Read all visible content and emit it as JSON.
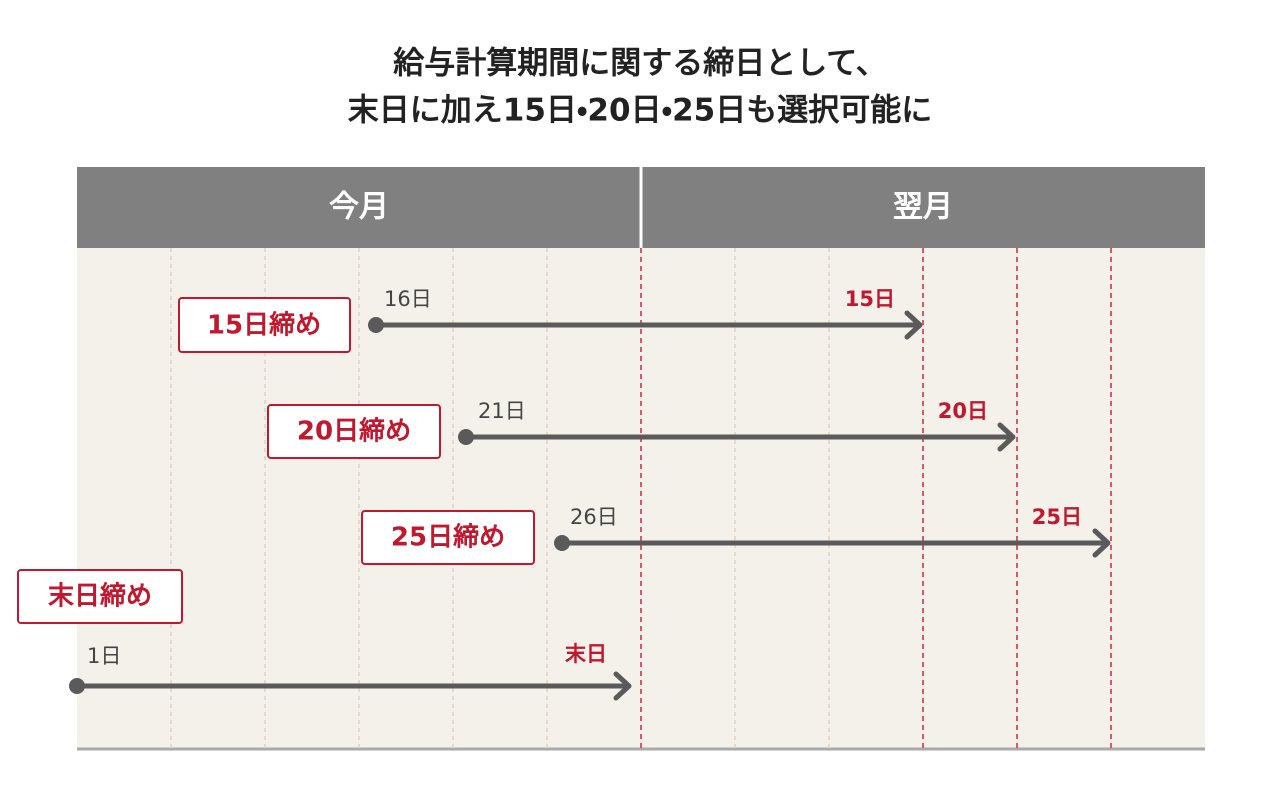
{
  "title": {
    "line1": "給与計算期間に関する締日として、",
    "line2": "末日に加え15日・20日・25日も選択可能に"
  },
  "header": {
    "this_month": "今月",
    "next_month": "翌月"
  },
  "rows": [
    {
      "label": "15日締め",
      "start": "16日",
      "end": "15日"
    },
    {
      "label": "20日締め",
      "start": "21日",
      "end": "20日"
    },
    {
      "label": "25日締め",
      "start": "26日",
      "end": "25日"
    },
    {
      "label": "末日締め",
      "start": "1日",
      "end": "末日"
    }
  ]
}
